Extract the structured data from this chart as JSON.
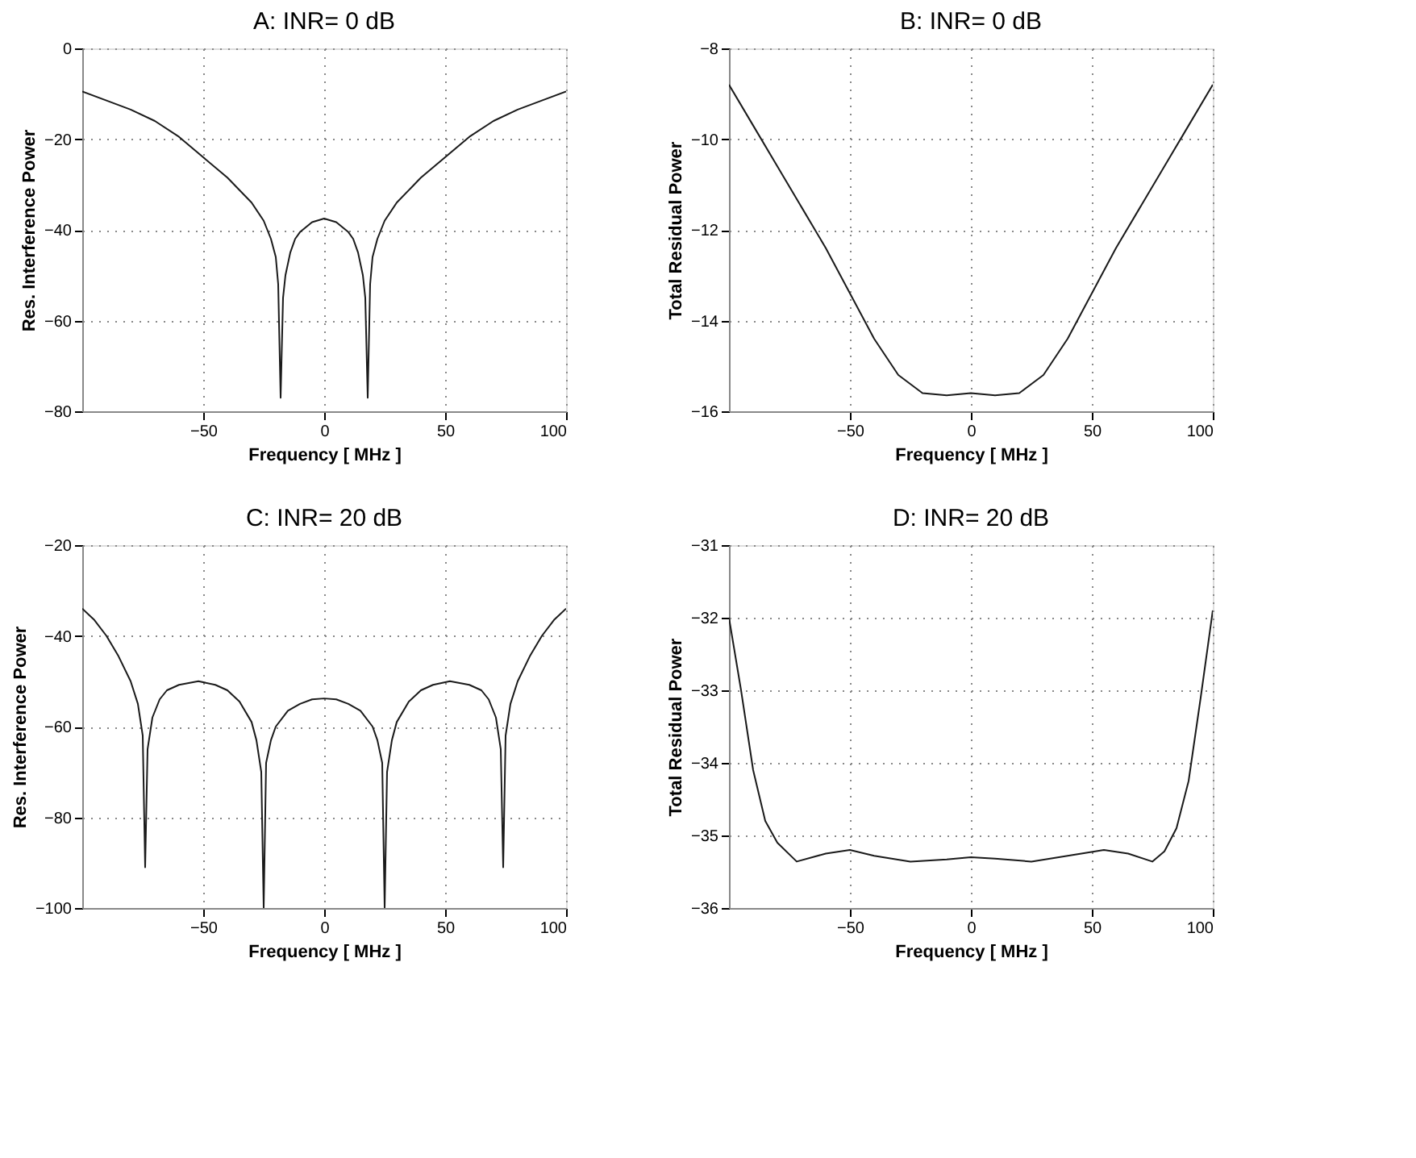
{
  "chart_data": [
    {
      "type": "line",
      "title": "A: INR= 0 dB",
      "xlabel": "Frequency [ MHz ]",
      "ylabel": "Res. Interference Power",
      "xlim": [
        -100,
        100
      ],
      "xticks": [
        -50,
        0,
        50,
        100
      ],
      "ylim": [
        -80,
        0
      ],
      "yticks": [
        -80,
        -60,
        -40,
        -20,
        0
      ],
      "grid": true,
      "x": [
        -100,
        -90,
        -80,
        -70,
        -60,
        -50,
        -40,
        -30,
        -25,
        -22,
        -20,
        -19,
        -18,
        -17,
        -16,
        -14,
        -12,
        -10,
        -5,
        0,
        5,
        10,
        12,
        14,
        16,
        17,
        18,
        19,
        20,
        22,
        25,
        30,
        40,
        50,
        60,
        70,
        80,
        90,
        100
      ],
      "series": [
        {
          "color": "#1a1a1a",
          "values": [
            -9.5,
            -11.5,
            -13.5,
            -16,
            -19.5,
            -24,
            -28.5,
            -34,
            -38,
            -42,
            -46,
            -52,
            -77,
            -55,
            -50,
            -45,
            -42,
            -40.5,
            -38.3,
            -37.5,
            -38.3,
            -40.5,
            -42,
            -45,
            -50,
            -55,
            -77,
            -52,
            -46,
            -42,
            -38,
            -34,
            -28.5,
            -24,
            -19.5,
            -16,
            -13.5,
            -11.5,
            -9.5
          ]
        }
      ]
    },
    {
      "type": "line",
      "title": "B: INR= 0 dB",
      "xlabel": "Frequency [ MHz ]",
      "ylabel": "Total Residual  Power",
      "xlim": [
        -100,
        100
      ],
      "xticks": [
        -50,
        0,
        50,
        100
      ],
      "ylim": [
        -16,
        -8
      ],
      "yticks": [
        -16,
        -14,
        -12,
        -10,
        -8
      ],
      "grid": true,
      "x": [
        -100,
        -90,
        -80,
        -70,
        -60,
        -50,
        -40,
        -30,
        -20,
        -10,
        0,
        10,
        20,
        30,
        40,
        50,
        60,
        70,
        80,
        90,
        100
      ],
      "series": [
        {
          "color": "#1a1a1a",
          "values": [
            -8.8,
            -9.7,
            -10.6,
            -11.5,
            -12.4,
            -13.4,
            -14.4,
            -15.2,
            -15.6,
            -15.65,
            -15.6,
            -15.65,
            -15.6,
            -15.2,
            -14.4,
            -13.4,
            -12.4,
            -11.5,
            -10.6,
            -9.7,
            -8.8
          ]
        }
      ]
    },
    {
      "type": "line",
      "title": "C: INR= 20 dB",
      "xlabel": "Frequency [ MHz ]",
      "ylabel": "Res. Interference Power",
      "xlim": [
        -100,
        100
      ],
      "xticks": [
        -50,
        0,
        50,
        100
      ],
      "ylim": [
        -100,
        -20
      ],
      "yticks": [
        -100,
        -80,
        -60,
        -40,
        -20
      ],
      "grid": true,
      "x": [
        -100,
        -95,
        -90,
        -85,
        -80,
        -77,
        -75,
        -74,
        -73,
        -71,
        -68,
        -65,
        -60,
        -52,
        -45,
        -40,
        -35,
        -30,
        -28,
        -26,
        -25,
        -24,
        -22,
        -20,
        -15,
        -10,
        -5,
        0,
        5,
        10,
        15,
        20,
        22,
        24,
        25,
        26,
        28,
        30,
        35,
        40,
        45,
        52,
        60,
        65,
        68,
        71,
        73,
        74,
        75,
        77,
        80,
        85,
        90,
        95,
        100
      ],
      "series": [
        {
          "color": "#1a1a1a",
          "values": [
            -34,
            -36.5,
            -40,
            -44.5,
            -50,
            -55,
            -62,
            -91,
            -65,
            -58,
            -54,
            -52,
            -50.8,
            -50,
            -50.8,
            -52,
            -54.5,
            -59,
            -63,
            -70,
            -100,
            -68,
            -63,
            -60,
            -56.5,
            -55,
            -54,
            -53.8,
            -54,
            -55,
            -56.5,
            -60,
            -63,
            -68,
            -100,
            -70,
            -63,
            -59,
            -54.5,
            -52,
            -50.8,
            -50,
            -50.8,
            -52,
            -54,
            -58,
            -65,
            -91,
            -62,
            -55,
            -50,
            -44.5,
            -40,
            -36.5,
            -34
          ]
        }
      ]
    },
    {
      "type": "line",
      "title": "D: INR= 20 dB",
      "xlabel": "Frequency [ MHz ]",
      "ylabel": "Total Residual  Power",
      "xlim": [
        -100,
        100
      ],
      "xticks": [
        -50,
        0,
        50,
        100
      ],
      "ylim": [
        -36,
        -31
      ],
      "yticks": [
        -36,
        -35,
        -34,
        -33,
        -32,
        -31
      ],
      "grid": true,
      "x": [
        -100,
        -95,
        -90,
        -85,
        -80,
        -72,
        -60,
        -50,
        -40,
        -25,
        -10,
        0,
        10,
        25,
        40,
        55,
        65,
        75,
        80,
        85,
        90,
        95,
        100
      ],
      "series": [
        {
          "color": "#1a1a1a",
          "values": [
            -32,
            -33,
            -34.1,
            -34.8,
            -35.1,
            -35.36,
            -35.25,
            -35.2,
            -35.28,
            -35.36,
            -35.33,
            -35.3,
            -35.32,
            -35.36,
            -35.28,
            -35.2,
            -35.25,
            -35.36,
            -35.22,
            -34.9,
            -34.25,
            -33.1,
            -31.9
          ]
        }
      ]
    }
  ]
}
